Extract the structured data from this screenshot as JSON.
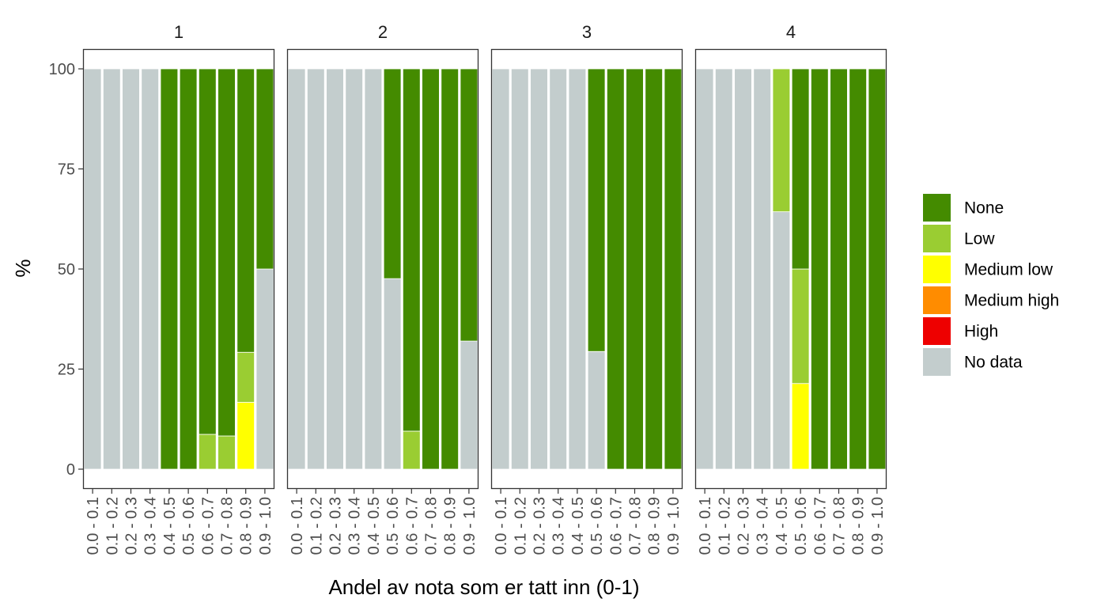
{
  "chart_data": {
    "type": "bar",
    "stacked": true,
    "ylabel": "%",
    "xlabel": "Andel av nota som er tatt inn (0-1)",
    "ylim": [
      0,
      100
    ],
    "yticks": [
      0,
      25,
      50,
      75,
      100
    ],
    "ytick_labels": [
      "0",
      "25",
      "50",
      "75",
      "100"
    ],
    "grid": false,
    "legend_position": "right",
    "categories": [
      "0.0 - 0.1",
      "0.1 - 0.2",
      "0.2 - 0.3",
      "0.3 - 0.4",
      "0.4 - 0.5",
      "0.5 - 0.6",
      "0.6 - 0.7",
      "0.7 - 0.8",
      "0.8 - 0.9",
      "0.9 - 1.0"
    ],
    "legend": [
      {
        "name": "None",
        "color": "#448b00"
      },
      {
        "name": "Low",
        "color": "#9acd32"
      },
      {
        "name": "Medium low",
        "color": "#ffff00"
      },
      {
        "name": "Medium high",
        "color": "#ff8c00"
      },
      {
        "name": "High",
        "color": "#ee0000"
      },
      {
        "name": "No data",
        "color": "#c3cdcd"
      }
    ],
    "panels": [
      {
        "label": "1",
        "bars": [
          {
            "none": 0,
            "low": 0,
            "medium_low": 0,
            "no_data": 100
          },
          {
            "none": 0,
            "low": 0,
            "medium_low": 0,
            "no_data": 100
          },
          {
            "none": 0,
            "low": 0,
            "medium_low": 0,
            "no_data": 100
          },
          {
            "none": 0,
            "low": 0,
            "medium_low": 0,
            "no_data": 100
          },
          {
            "none": 100,
            "low": 0,
            "medium_low": 0,
            "no_data": 0
          },
          {
            "none": 100,
            "low": 0,
            "medium_low": 0,
            "no_data": 0
          },
          {
            "none": 91.3,
            "low": 8.7,
            "medium_low": 0,
            "no_data": 0
          },
          {
            "none": 91.7,
            "low": 8.3,
            "medium_low": 0,
            "no_data": 0
          },
          {
            "none": 70.8,
            "low": 12.5,
            "medium_low": 16.7,
            "no_data": 0
          },
          {
            "none": 50,
            "low": 0,
            "medium_low": 0,
            "no_data": 50
          }
        ]
      },
      {
        "label": "2",
        "bars": [
          {
            "none": 0,
            "low": 0,
            "medium_low": 0,
            "no_data": 100
          },
          {
            "none": 0,
            "low": 0,
            "medium_low": 0,
            "no_data": 100
          },
          {
            "none": 0,
            "low": 0,
            "medium_low": 0,
            "no_data": 100
          },
          {
            "none": 0,
            "low": 0,
            "medium_low": 0,
            "no_data": 100
          },
          {
            "none": 0,
            "low": 0,
            "medium_low": 0,
            "no_data": 100
          },
          {
            "none": 52.4,
            "low": 0,
            "medium_low": 0,
            "no_data": 47.6
          },
          {
            "none": 90.5,
            "low": 9.5,
            "medium_low": 0,
            "no_data": 0
          },
          {
            "none": 100,
            "low": 0,
            "medium_low": 0,
            "no_data": 0
          },
          {
            "none": 100,
            "low": 0,
            "medium_low": 0,
            "no_data": 0
          },
          {
            "none": 68,
            "low": 0,
            "medium_low": 0,
            "no_data": 32
          }
        ]
      },
      {
        "label": "3",
        "bars": [
          {
            "none": 0,
            "low": 0,
            "medium_low": 0,
            "no_data": 100
          },
          {
            "none": 0,
            "low": 0,
            "medium_low": 0,
            "no_data": 100
          },
          {
            "none": 0,
            "low": 0,
            "medium_low": 0,
            "no_data": 100
          },
          {
            "none": 0,
            "low": 0,
            "medium_low": 0,
            "no_data": 100
          },
          {
            "none": 0,
            "low": 0,
            "medium_low": 0,
            "no_data": 100
          },
          {
            "none": 70.6,
            "low": 0,
            "medium_low": 0,
            "no_data": 29.4
          },
          {
            "none": 100,
            "low": 0,
            "medium_low": 0,
            "no_data": 0
          },
          {
            "none": 100,
            "low": 0,
            "medium_low": 0,
            "no_data": 0
          },
          {
            "none": 100,
            "low": 0,
            "medium_low": 0,
            "no_data": 0
          },
          {
            "none": 100,
            "low": 0,
            "medium_low": 0,
            "no_data": 0
          }
        ]
      },
      {
        "label": "4",
        "bars": [
          {
            "none": 0,
            "low": 0,
            "medium_low": 0,
            "no_data": 100
          },
          {
            "none": 0,
            "low": 0,
            "medium_low": 0,
            "no_data": 100
          },
          {
            "none": 0,
            "low": 0,
            "medium_low": 0,
            "no_data": 100
          },
          {
            "none": 0,
            "low": 0,
            "medium_low": 0,
            "no_data": 100
          },
          {
            "none": 0,
            "low": 35.7,
            "medium_low": 0,
            "no_data": 64.3
          },
          {
            "none": 50,
            "low": 28.6,
            "medium_low": 21.4,
            "no_data": 0
          },
          {
            "none": 100,
            "low": 0,
            "medium_low": 0,
            "no_data": 0
          },
          {
            "none": 100,
            "low": 0,
            "medium_low": 0,
            "no_data": 0
          },
          {
            "none": 100,
            "low": 0,
            "medium_low": 0,
            "no_data": 0
          },
          {
            "none": 100,
            "low": 0,
            "medium_low": 0,
            "no_data": 0
          }
        ]
      }
    ]
  }
}
